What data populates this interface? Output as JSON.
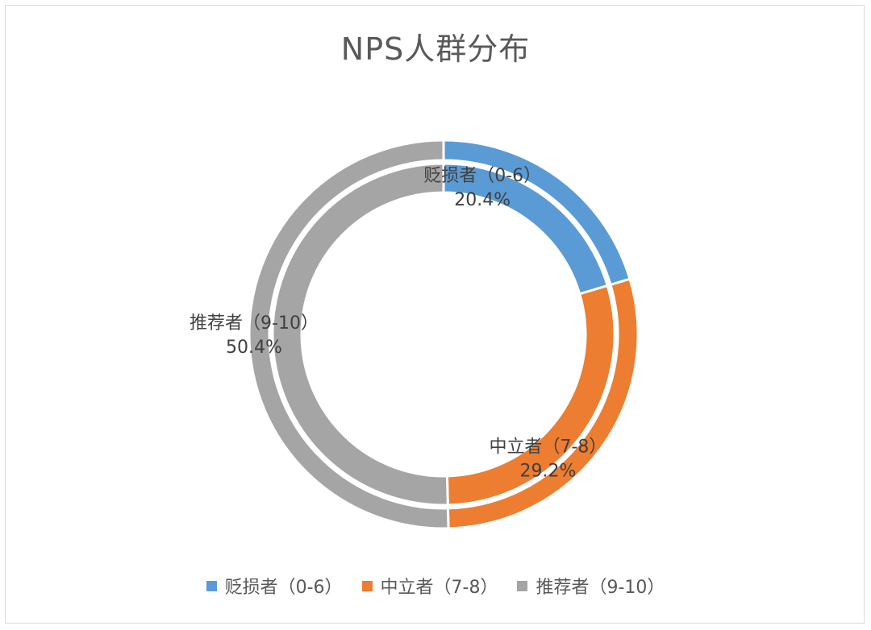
{
  "chart_data": {
    "type": "pie",
    "title": "NPS人群分布",
    "categories": [
      "贬损者（0-6）",
      "中立者（7-8）",
      "推荐者（9-10）"
    ],
    "series": [
      {
        "values": [
          20.4,
          29.2,
          50.4
        ]
      },
      {
        "values": [
          20.4,
          29.2,
          50.4
        ]
      }
    ],
    "data_labels": [
      "20.4%",
      "29.2%",
      "50.4%"
    ],
    "colors": [
      "#5b9bd5",
      "#ed7d31",
      "#a5a5a5"
    ],
    "legend_position": "bottom",
    "style": "donut"
  }
}
